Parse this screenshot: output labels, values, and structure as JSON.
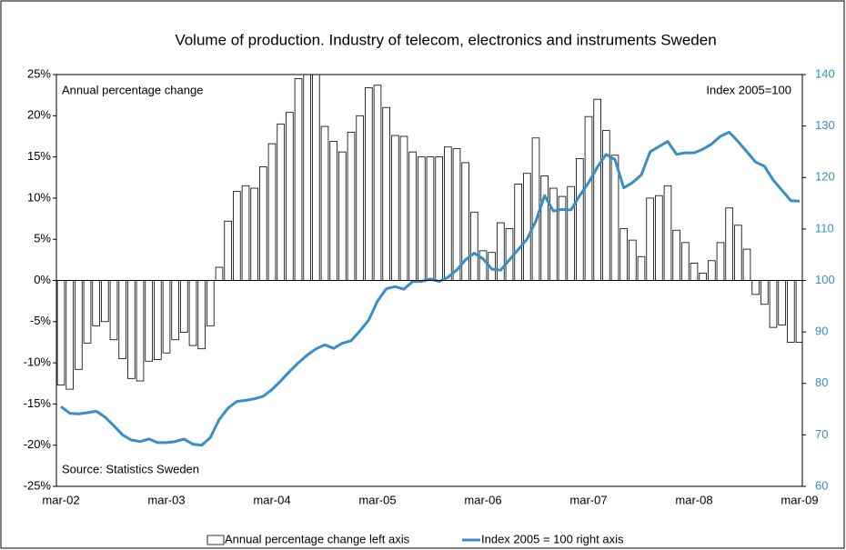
{
  "chart_data": {
    "type": "bar-line",
    "title": "Volume of production. Industry of telecom, electronics and instruments Sweden",
    "annotations": [
      "Annual percentage change",
      "Index 2005=100",
      "Source: Statistics Sweden"
    ],
    "categories": [
      "mar-02",
      null,
      null,
      null,
      null,
      null,
      null,
      null,
      null,
      null,
      null,
      null,
      "mar-03",
      null,
      null,
      null,
      null,
      null,
      null,
      null,
      null,
      null,
      null,
      null,
      "mar-04",
      null,
      null,
      null,
      null,
      null,
      null,
      null,
      null,
      null,
      null,
      null,
      "mar-05",
      null,
      null,
      null,
      null,
      null,
      null,
      null,
      null,
      null,
      null,
      null,
      "mar-06",
      null,
      null,
      null,
      null,
      null,
      null,
      null,
      null,
      null,
      null,
      null,
      "mar-07",
      null,
      null,
      null,
      null,
      null,
      null,
      null,
      null,
      null,
      null,
      null,
      "mar-08",
      null,
      null,
      null,
      null,
      null,
      null,
      null,
      null,
      null,
      null,
      null,
      "mar-09"
    ],
    "series": [
      {
        "name": "Annual percentage change left axis",
        "type": "bar",
        "color": "#ffffff",
        "values": [
          -12.7,
          -13.2,
          -10.8,
          -7.6,
          -5.5,
          -5.0,
          -7.2,
          -9.5,
          -11.9,
          -12.2,
          -9.8,
          -9.6,
          -8.8,
          -7.2,
          -6.3,
          -7.9,
          -8.3,
          -5.5,
          1.6,
          7.2,
          10.8,
          11.5,
          11.2,
          13.8,
          16.6,
          19.0,
          20.4,
          24.5,
          27,
          27,
          18.7,
          16.9,
          15.6,
          18.0,
          20.0,
          23.4,
          23.7,
          21.0,
          17.6,
          17.5,
          15.6,
          15.0,
          15.0,
          15.0,
          16.2,
          16.0,
          14.3,
          8.3,
          3.6,
          3.4,
          7.0,
          6.3,
          11.7,
          13.0,
          17.3,
          12.7,
          11.2,
          10.2,
          11.4,
          14.8,
          19.9,
          22.0,
          18.2,
          15.2,
          6.3,
          4.9,
          2.9,
          10.0,
          10.3,
          11.5,
          6.1,
          4.6,
          2.1,
          0.9,
          2.4,
          4.6,
          8.8,
          6.7,
          3.8,
          -1.7,
          -2.9,
          -5.7,
          -5.4,
          -7.5,
          -7.5
        ]
      },
      {
        "name": "Index 2005 = 100 right axis",
        "type": "line",
        "axis": "y2",
        "color": "#3a8dc5",
        "values": [
          75.5,
          74.2,
          74.1,
          74.3,
          74.6,
          73.5,
          71.8,
          70.0,
          69.0,
          68.7,
          69.2,
          68.5,
          68.5,
          68.7,
          69.2,
          68.2,
          68.0,
          69.5,
          73.0,
          75.2,
          76.5,
          76.7,
          77.0,
          77.5,
          78.8,
          80.5,
          82.3,
          84.0,
          85.5,
          86.7,
          87.5,
          86.8,
          87.8,
          88.3,
          90.2,
          92.3,
          96.0,
          98.4,
          98.8,
          98.3,
          99.8,
          99.8,
          100.3,
          99.8,
          100.6,
          102.0,
          104.0,
          105.3,
          104.2,
          102.2,
          102.0,
          104.0,
          106.0,
          108.0,
          111.5,
          116.5,
          113.5,
          113.8,
          113.7,
          116.5,
          119.0,
          122.0,
          124.5,
          123.5,
          118.0,
          119.0,
          120.5,
          125.0,
          126.0,
          127.0,
          124.5,
          124.8,
          124.8,
          125.5,
          126.5,
          128.0,
          128.8,
          127.0,
          125.0,
          123.0,
          122.2,
          119.5,
          117.5,
          115.5,
          115.4
        ]
      }
    ],
    "ylim": [
      -25,
      25
    ],
    "yticks": [
      {
        "value": -25,
        "label": "-25%"
      },
      {
        "value": -20,
        "label": "-20%"
      },
      {
        "value": -15,
        "label": "-15%"
      },
      {
        "value": -10,
        "label": "-10%"
      },
      {
        "value": -5,
        "label": "-5%"
      },
      {
        "value": 0,
        "label": "0%"
      },
      {
        "value": 5,
        "label": "5%"
      },
      {
        "value": 10,
        "label": "10%"
      },
      {
        "value": 15,
        "label": "15%"
      },
      {
        "value": 20,
        "label": "20%"
      },
      {
        "value": 25,
        "label": "25%"
      }
    ],
    "y2lim": [
      60,
      140
    ],
    "y2ticks": [
      60,
      70,
      80,
      90,
      100,
      110,
      120,
      130,
      140
    ],
    "legend": "bottom"
  }
}
